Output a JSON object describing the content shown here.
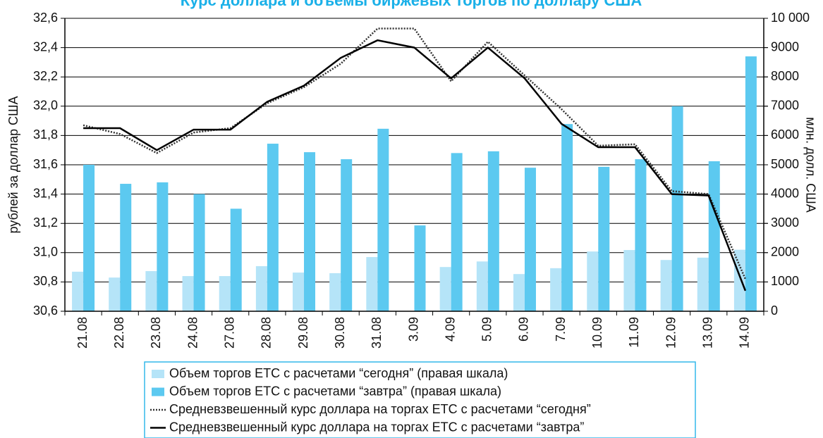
{
  "chart_data": {
    "type": "bar",
    "title": "Курс доллара и объемы биржевых торгов по доллару США",
    "ylabel": "рублей за доллар США",
    "y2label": "млн. долл. США",
    "categories": [
      "21.08",
      "22.08",
      "23.08",
      "24.08",
      "27.08",
      "28.08",
      "29.08",
      "30.08",
      "31.08",
      "3.09",
      "4.09",
      "5.09",
      "6.09",
      "7.09",
      "10.09",
      "11.09",
      "12.09",
      "13.09",
      "14.09"
    ],
    "ylim": [
      30.6,
      32.6
    ],
    "yticks": [
      {
        "value": 30.6,
        "label": "30,6"
      },
      {
        "value": 30.8,
        "label": "30,8"
      },
      {
        "value": 31.0,
        "label": "31,0"
      },
      {
        "value": 31.2,
        "label": "31,2"
      },
      {
        "value": 31.4,
        "label": "31,4"
      },
      {
        "value": 31.6,
        "label": "31,6"
      },
      {
        "value": 31.8,
        "label": "31,8"
      },
      {
        "value": 32.0,
        "label": "32,0"
      },
      {
        "value": 32.2,
        "label": "32,2"
      },
      {
        "value": 32.4,
        "label": "32,4"
      },
      {
        "value": 32.6,
        "label": "32,6"
      }
    ],
    "y2lim": [
      0,
      10000
    ],
    "y2ticks": [
      0,
      1000,
      2000,
      3000,
      4000,
      5000,
      6000,
      7000,
      8000,
      9000,
      {
        "value": 10000,
        "label": "10 000"
      }
    ],
    "grid": true,
    "series": [
      {
        "name": "Объем торгов ЕТС с расчетами “сегодня” (правая шкала)",
        "kind": "bar",
        "axis": "y2",
        "color": "#b5e4f8",
        "values": [
          1350,
          1150,
          1370,
          1200,
          1200,
          1540,
          1320,
          1300,
          1850,
          null,
          1510,
          1700,
          1270,
          1470,
          2040,
          2090,
          1750,
          1830,
          2100
        ]
      },
      {
        "name": "Объем торгов ЕТС с расчетами “завтра” (правая шкала)",
        "kind": "bar",
        "axis": "y2",
        "color": "#5cc9f0",
        "values": [
          5000,
          4350,
          4400,
          4000,
          3500,
          5720,
          5430,
          5190,
          6230,
          2930,
          5400,
          5460,
          4900,
          6390,
          4930,
          5190,
          7000,
          5120,
          8700
        ]
      },
      {
        "name": "Средневзвешенный курс доллара на торгах ЕТС с расчетами “сегодня”",
        "kind": "line",
        "dashed": true,
        "color": "#333333",
        "values": [
          31.87,
          31.81,
          31.68,
          31.82,
          31.85,
          32.02,
          32.13,
          32.29,
          32.53,
          32.53,
          32.17,
          32.44,
          32.21,
          31.98,
          31.73,
          31.74,
          31.42,
          31.4,
          30.82
        ]
      },
      {
        "name": "Средневзвешенный курс доллара на торгах ЕТС с расчетами “завтра”",
        "kind": "line",
        "dashed": false,
        "color": "#000000",
        "values": [
          31.85,
          31.85,
          31.7,
          31.84,
          31.84,
          32.03,
          32.14,
          32.33,
          32.45,
          32.4,
          32.19,
          32.4,
          32.19,
          31.88,
          31.72,
          31.72,
          31.4,
          31.39,
          30.74
        ]
      }
    ]
  }
}
